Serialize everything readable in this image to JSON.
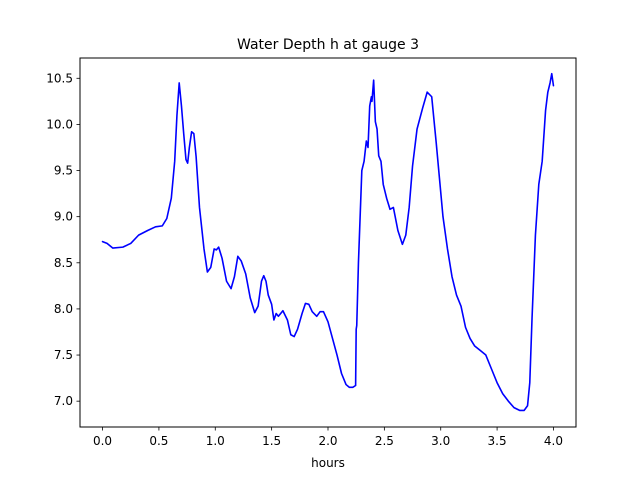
{
  "chart_data": {
    "type": "line",
    "title": "Water Depth h at gauge 3",
    "xlabel": "hours",
    "ylabel": "",
    "xlim": [
      -0.2,
      4.2
    ],
    "ylim": [
      6.72,
      10.72
    ],
    "xticks": [
      0.0,
      0.5,
      1.0,
      1.5,
      2.0,
      2.5,
      3.0,
      3.5,
      4.0
    ],
    "xtick_labels": [
      "0.0",
      "0.5",
      "1.0",
      "1.5",
      "2.0",
      "2.5",
      "3.0",
      "3.5",
      "4.0"
    ],
    "yticks": [
      7.0,
      7.5,
      8.0,
      8.5,
      9.0,
      9.5,
      10.0,
      10.5
    ],
    "ytick_labels": [
      "7.0",
      "7.5",
      "8.0",
      "8.5",
      "9.0",
      "9.5",
      "10.0",
      "10.5"
    ],
    "grid": false,
    "series": [
      {
        "color": "#0000ff",
        "x": [
          0.0,
          0.04,
          0.09,
          0.18,
          0.25,
          0.32,
          0.4,
          0.47,
          0.53,
          0.57,
          0.61,
          0.64,
          0.66,
          0.68,
          0.7,
          0.72,
          0.74,
          0.755,
          0.77,
          0.79,
          0.81,
          0.83,
          0.86,
          0.9,
          0.93,
          0.96,
          0.99,
          1.01,
          1.03,
          1.06,
          1.1,
          1.14,
          1.17,
          1.2,
          1.23,
          1.27,
          1.31,
          1.35,
          1.38,
          1.41,
          1.43,
          1.45,
          1.47,
          1.5,
          1.52,
          1.54,
          1.56,
          1.6,
          1.64,
          1.67,
          1.7,
          1.73,
          1.77,
          1.8,
          1.83,
          1.86,
          1.9,
          1.93,
          1.96,
          2.0,
          2.04,
          2.08,
          2.12,
          2.16,
          2.19,
          2.22,
          2.245,
          2.25,
          2.255,
          2.27,
          2.3,
          2.32,
          2.34,
          2.355,
          2.37,
          2.385,
          2.39,
          2.405,
          2.42,
          2.435,
          2.45,
          2.47,
          2.49,
          2.52,
          2.55,
          2.58,
          2.62,
          2.66,
          2.69,
          2.72,
          2.75,
          2.79,
          2.84,
          2.88,
          2.92,
          2.94,
          2.96,
          2.99,
          3.02,
          3.06,
          3.1,
          3.14,
          3.18,
          3.22,
          3.26,
          3.3,
          3.35,
          3.4,
          3.45,
          3.5,
          3.55,
          3.6,
          3.65,
          3.7,
          3.74,
          3.77,
          3.79,
          3.81,
          3.84,
          3.87,
          3.9,
          3.93,
          3.95,
          3.97,
          3.985,
          4.0
        ],
        "y": [
          8.73,
          8.71,
          8.66,
          8.67,
          8.71,
          8.8,
          8.85,
          8.89,
          8.9,
          8.98,
          9.2,
          9.6,
          10.1,
          10.45,
          10.2,
          9.9,
          9.62,
          9.58,
          9.75,
          9.92,
          9.9,
          9.65,
          9.1,
          8.65,
          8.4,
          8.45,
          8.65,
          8.64,
          8.67,
          8.55,
          8.3,
          8.22,
          8.35,
          8.57,
          8.52,
          8.38,
          8.12,
          7.96,
          8.03,
          8.3,
          8.36,
          8.3,
          8.15,
          8.05,
          7.88,
          7.95,
          7.92,
          7.98,
          7.88,
          7.72,
          7.7,
          7.78,
          7.95,
          8.06,
          8.05,
          7.97,
          7.92,
          7.97,
          7.97,
          7.86,
          7.68,
          7.5,
          7.3,
          7.18,
          7.15,
          7.15,
          7.17,
          7.78,
          7.82,
          8.5,
          9.5,
          9.6,
          9.82,
          9.75,
          10.2,
          10.3,
          10.25,
          10.48,
          10.03,
          9.95,
          9.66,
          9.6,
          9.35,
          9.2,
          9.08,
          9.1,
          8.85,
          8.7,
          8.8,
          9.1,
          9.55,
          9.95,
          10.18,
          10.35,
          10.3,
          10.05,
          9.8,
          9.4,
          9.0,
          8.65,
          8.35,
          8.15,
          8.03,
          7.8,
          7.68,
          7.6,
          7.55,
          7.5,
          7.35,
          7.2,
          7.08,
          7.0,
          6.93,
          6.9,
          6.9,
          6.95,
          7.2,
          7.9,
          8.8,
          9.35,
          9.6,
          10.15,
          10.35,
          10.45,
          10.55,
          10.42
        ]
      }
    ]
  }
}
